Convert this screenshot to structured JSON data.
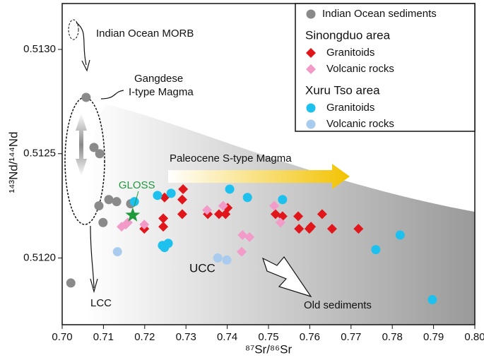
{
  "chart_data": {
    "type": "scatter",
    "x_label": "⁸⁷Sr/⁸⁶Sr",
    "y_label": "¹⁴³Nd/¹⁴⁴Nd",
    "xlim": [
      0.7,
      0.8
    ],
    "ylim": [
      0.51168,
      0.51322
    ],
    "xticks": [
      {
        "value": 0.7,
        "label": "0.70"
      },
      0.71,
      0.72,
      0.73,
      0.74,
      0.75,
      0.76,
      0.77,
      0.78,
      0.79,
      {
        "value": 0.8,
        "label": "0.80"
      }
    ],
    "yticks": [
      {
        "value": 0.512,
        "label": "0.5120"
      },
      0.5125,
      {
        "value": 0.513,
        "label": "0.5130"
      }
    ],
    "annotations": [
      "Indian Ocean MORB",
      "Gangdese",
      "I-type Magma",
      "Paleocene S-type Magma",
      "UCC",
      "LCC",
      "Old sediments"
    ],
    "gloss": {
      "label": "GLOSS",
      "x": 0.7171,
      "y": 0.512205,
      "color": "#1e9a3c"
    },
    "series": [
      {
        "name": "Indian Ocean sediments",
        "marker": "circle",
        "color": "#8a8a8a",
        "x": [
          0.7058,
          0.7077,
          0.7091,
          0.7089,
          0.7113,
          0.7132,
          0.7099,
          0.7021,
          0.7166
        ],
        "values": [
          0.51277,
          0.51253,
          0.5125,
          0.51225,
          0.51228,
          0.51227,
          0.51217,
          0.51188,
          0.51226
        ]
      },
      {
        "name": "Granitoids",
        "group": "Sinongduo area",
        "marker": "diamond",
        "color": "#e0161b",
        "x": [
          0.7248,
          0.7293,
          0.7291,
          0.7291,
          0.7245,
          0.7245,
          0.7199,
          0.7353,
          0.738,
          0.7396,
          0.7401,
          0.7517,
          0.7534,
          0.7572,
          0.7574,
          0.7603,
          0.7599,
          0.763,
          0.7654,
          0.7718
        ],
        "values": [
          0.51229,
          0.51233,
          0.51228,
          0.51221,
          0.51219,
          0.51215,
          0.51214,
          0.51221,
          0.51221,
          0.51221,
          0.51224,
          0.51221,
          0.5122,
          0.5122,
          0.51214,
          0.51215,
          0.51214,
          0.51221,
          0.51214,
          0.51214
        ]
      },
      {
        "name": "Volcanic rocks",
        "group": "Sinongduo area",
        "marker": "diamond",
        "color": "#f29bc9",
        "x": [
          0.7144,
          0.7159,
          0.7199,
          0.7351,
          0.739,
          0.7437,
          0.7454,
          0.7435,
          0.7514,
          0.7529,
          0.7154
        ],
        "values": [
          0.51215,
          0.51217,
          0.51216,
          0.51223,
          0.51225,
          0.51211,
          0.5121,
          0.51203,
          0.51225,
          0.51217,
          0.51216
        ]
      },
      {
        "name": "Granitoids",
        "group": "Xuru Tso area",
        "marker": "circle",
        "color": "#1ec1ee",
        "x": [
          0.7175,
          0.7231,
          0.7264,
          0.7406,
          0.7449,
          0.7534,
          0.7243,
          0.7257,
          0.776,
          0.7819,
          0.7897,
          0.7248
        ],
        "values": [
          0.51227,
          0.5123,
          0.51231,
          0.51233,
          0.51229,
          0.51228,
          0.51206,
          0.51207,
          0.51204,
          0.51211,
          0.5118,
          0.51205
        ]
      },
      {
        "name": "Volcanic rocks",
        "group": "Xuru Tso area",
        "marker": "circle",
        "color": "#a8cbee",
        "x": [
          0.7134,
          0.7377,
          0.7399
        ],
        "values": [
          0.51203,
          0.512,
          0.51199
        ]
      }
    ]
  }
}
